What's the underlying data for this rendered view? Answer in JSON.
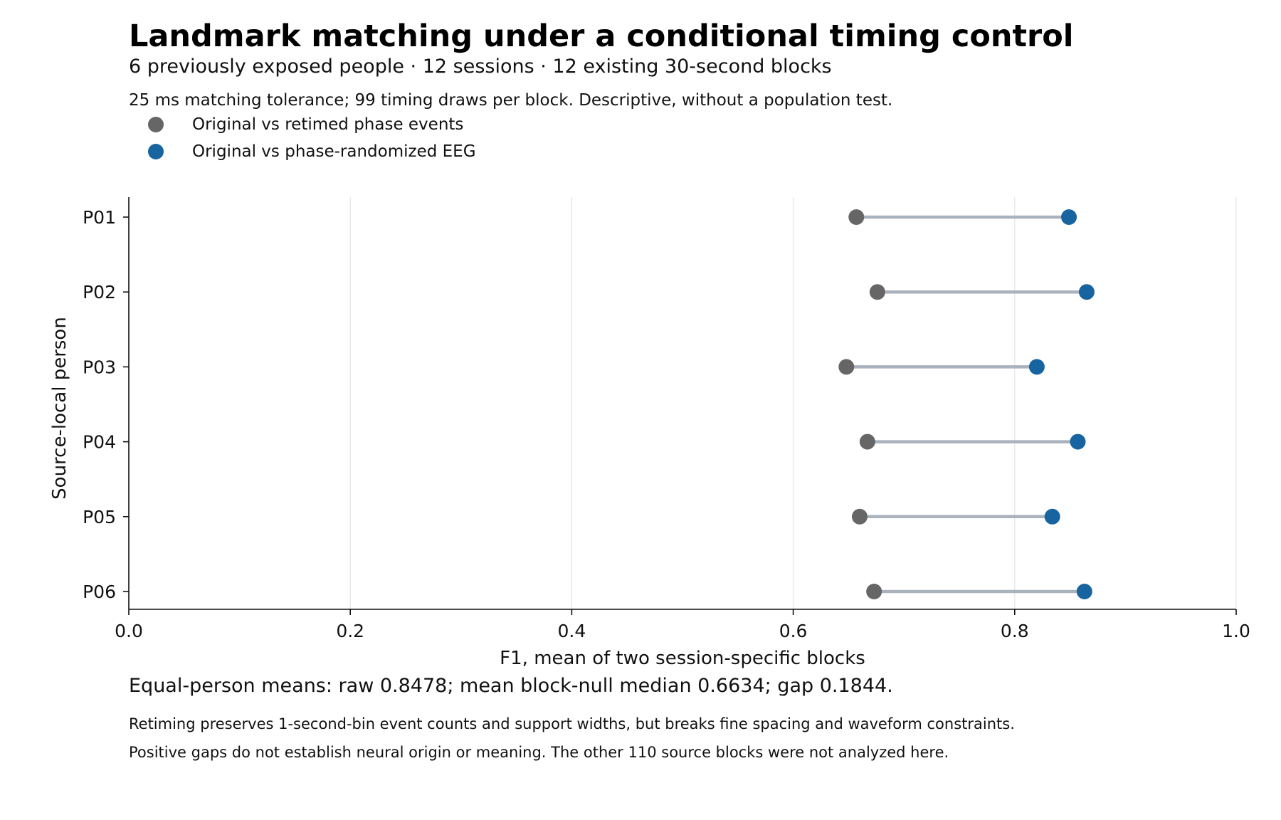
{
  "chart_data": {
    "type": "dumbbell",
    "title": "Landmark matching under a conditional timing control",
    "subtitle": "6 previously exposed people · 12 sessions · 12 existing 30-second blocks",
    "note": "25 ms matching tolerance; 99 timing draws per block. Descriptive, without a population test.",
    "xlabel": "F1, mean of two session-specific blocks",
    "ylabel": "Source-local person",
    "xlim": [
      0,
      1
    ],
    "xticks": [
      "0.0",
      "0.2",
      "0.4",
      "0.6",
      "0.8",
      "1.0"
    ],
    "xtick_values": [
      0.0,
      0.2,
      0.4,
      0.6,
      0.8,
      1.0
    ],
    "grid": "vertical",
    "legend_position": "top-left",
    "categories": [
      "P01",
      "P02",
      "P03",
      "P04",
      "P05",
      "P06"
    ],
    "series": [
      {
        "name": "Original vs retimed phase events",
        "color": "#666666",
        "values": [
          0.657,
          0.676,
          0.648,
          0.667,
          0.66,
          0.673
        ]
      },
      {
        "name": "Original vs phase-randomized EEG",
        "color": "#1764a0",
        "values": [
          0.849,
          0.865,
          0.82,
          0.857,
          0.834,
          0.863
        ]
      }
    ],
    "connector_color": "#a9b2bd",
    "summary": "Equal-person means: raw 0.8478; mean block-null median 0.6634; gap 0.1844.",
    "footnotes": [
      "Retiming preserves 1-second-bin event counts and support widths, but breaks fine spacing and waveform constraints.",
      "Positive gaps do not establish neural origin or meaning. The other 110 source blocks were not analyzed here."
    ]
  }
}
